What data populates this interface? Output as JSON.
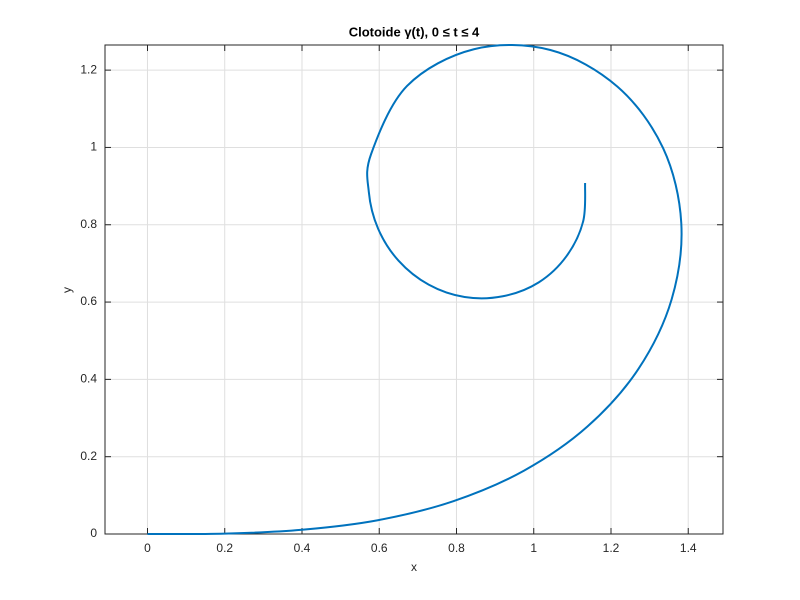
{
  "chart_data": {
    "type": "line",
    "title": "Clotoide γ(t), 0 ≤ t ≤ 4",
    "x_label": "x",
    "y_label": "y",
    "x": [
      0,
      0.2,
      0.4,
      0.598,
      0.792,
      0.975,
      1.139,
      1.271,
      1.357,
      1.382,
      1.335,
      1.217,
      1.043,
      0.845,
      0.672,
      0.579,
      0.573,
      0.597,
      0.65,
      0.728,
      0.821,
      0.92,
      1.013,
      1.085,
      1.128,
      1.133
    ],
    "values": [
      0,
      0.001,
      0.011,
      0.036,
      0.085,
      0.164,
      0.278,
      0.427,
      0.607,
      0.804,
      0.998,
      1.157,
      1.252,
      1.254,
      1.159,
      0.983,
      0.885,
      0.79,
      0.707,
      0.645,
      0.613,
      0.615,
      0.651,
      0.719,
      0.809,
      0.908
    ],
    "color": "#0072bd",
    "xlim": [
      -0.11,
      1.49
    ],
    "ylim": [
      0,
      1.265
    ],
    "xticks": [
      0,
      0.2,
      0.4,
      0.6,
      0.8,
      1,
      1.2,
      1.4
    ],
    "yticks": [
      0,
      0.2,
      0.4,
      0.6,
      0.8,
      1,
      1.2
    ],
    "grid": true
  }
}
